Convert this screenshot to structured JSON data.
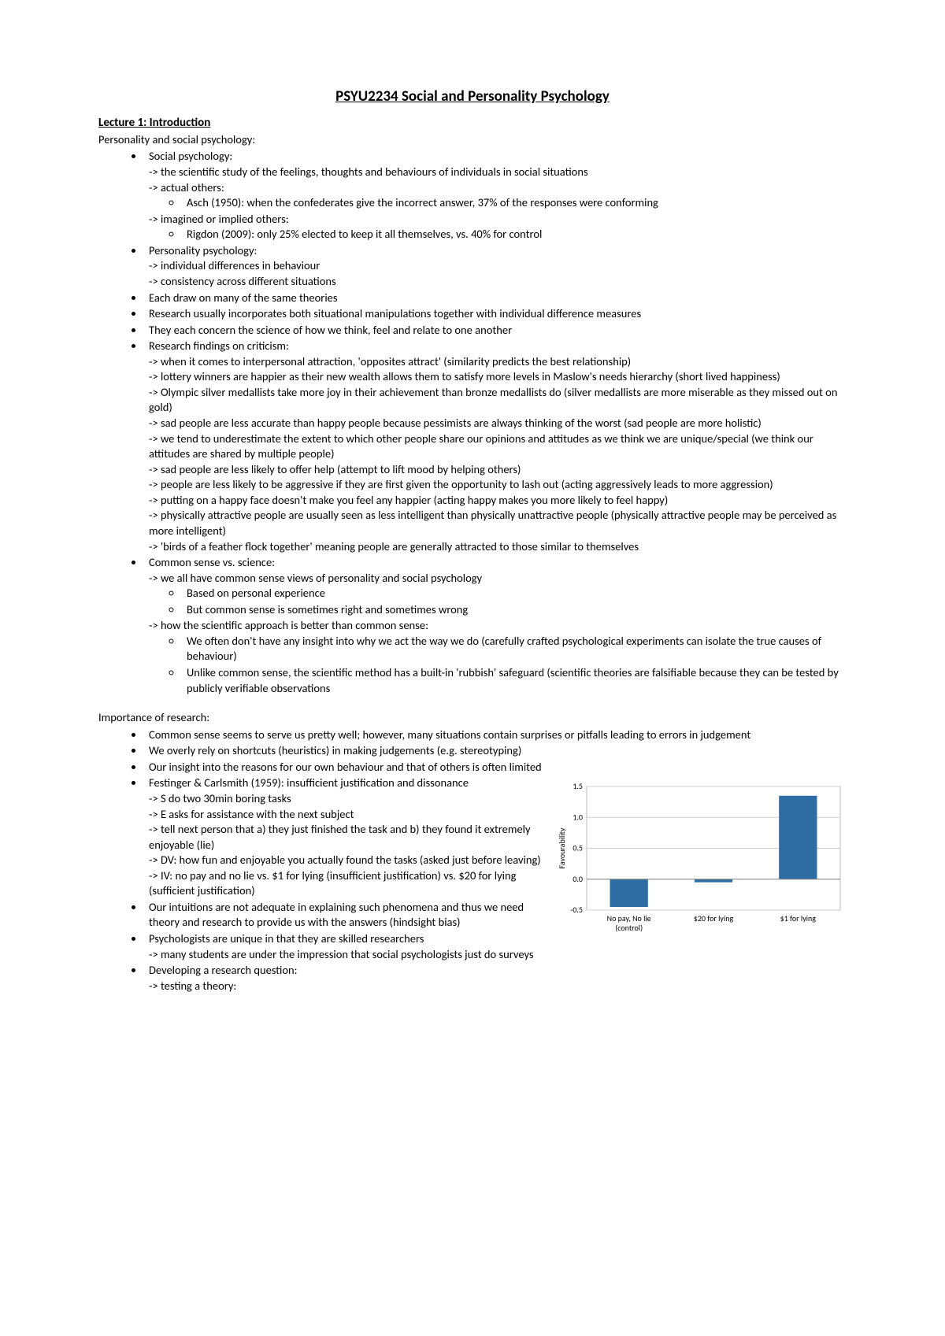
{
  "title": "PSYU2234 Social and Personality Psychology",
  "lecture_heading": "Lecture 1: Introduction",
  "section1_heading": "Personality and social psychology:",
  "b1": {
    "label": "Social psychology:",
    "s1": "-> the scientific study of the feelings, thoughts and behaviours of individuals in social situations",
    "s2": "-> actual others:",
    "s2a": "Asch (1950): when the confederates give the incorrect answer, 37% of the responses were conforming",
    "s3": "-> imagined or implied others:",
    "s3a": "Rigdon (2009): only 25% elected to keep it all themselves, vs. 40% for control"
  },
  "b2": {
    "label": "Personality psychology:",
    "s1": "-> individual differences in behaviour",
    "s2": "-> consistency across different situations"
  },
  "b3": "Each draw on many of the same theories",
  "b4": "Research usually incorporates both situational manipulations together with individual difference measures",
  "b5": "They each concern the science of how we think, feel and relate to one another",
  "b6": {
    "label": "Research findings on criticism:",
    "s1": "-> when it comes to interpersonal attraction, 'opposites attract' (similarity predicts the best relationship)",
    "s2": "-> lottery winners are happier as their new wealth allows them to satisfy more levels in Maslow's needs hierarchy (short lived happiness)",
    "s3": "-> Olympic silver medallists take more joy in their achievement than bronze medallists do (silver medallists are more miserable as they missed out on gold)",
    "s4": "-> sad people are less accurate than happy people because pessimists are always thinking of the worst (sad people are more holistic)",
    "s5": "-> we tend to underestimate the extent to which other people share our opinions and attitudes as we think we are unique/special (we think our attitudes are shared by multiple people)",
    "s6": "-> sad people are less likely to offer help (attempt to lift mood by helping others)",
    "s7": "-> people are less likely to be aggressive if they are first given the opportunity to lash out (acting aggressively leads to more aggression)",
    "s8": "-> putting on a happy face doesn't make you feel any happier (acting happy makes you more likely to feel happy)",
    "s9": "-> physically attractive people are usually seen as less intelligent than physically unattractive people (physically attractive people may be perceived as more intelligent)",
    "s10": "-> 'birds of a feather flock together' meaning people are generally attracted to those similar to themselves"
  },
  "b7": {
    "label": "Common sense vs. science:",
    "s1": "-> we all have common sense views of personality and social psychology",
    "s1a": "Based on personal experience",
    "s1b": "But common sense is sometimes right and sometimes wrong",
    "s2": "-> how the scientific approach is better than common sense:",
    "s2a": "We often don't have any insight into why we act the way we do (carefully crafted psychological experiments can isolate the true causes of behaviour)",
    "s2b": "Unlike common sense, the scientific method has a built-in 'rubbish' safeguard (scientific theories are falsifiable because they can be tested by publicly verifiable observations"
  },
  "section2_heading": "Importance of research:",
  "c1": "Common sense seems to serve us pretty well; however, many situations contain surprises or pitfalls leading to errors in judgement",
  "c2": "We overly rely on shortcuts (heuristics) in making judgements (e.g. stereotyping)",
  "c3": "Our insight into the reasons for our own behaviour and that of others is often limited",
  "c4": {
    "label": "Festinger & Carlsmith (1959): insufficient justification and dissonance",
    "s1": "-> S do two 30min boring tasks",
    "s2": "-> E asks for assistance with the next subject",
    "s3": "-> tell next person that a) they just finished the task and b) they found it extremely enjoyable (lie)",
    "s4": "-> DV: how fun and enjoyable you actually found the tasks (asked just before leaving)",
    "s5": "-> IV: no pay and no lie vs. $1 for lying (insufficient justification) vs. $20 for lying (sufficient justification)"
  },
  "c5": "Our intuitions are not adequate in explaining such phenomena and thus we need theory and research to provide us with the answers (hindsight bias)",
  "c6": {
    "label": "Psychologists are unique in that they are skilled researchers",
    "s1": "-> many students are under the impression that social psychologists just do surveys"
  },
  "c7": {
    "label": "Developing a research question:",
    "s1": "-> testing a theory:"
  },
  "chart": {
    "type": "bar",
    "ylabel": "Favourability",
    "categories": [
      "No pay, No lie (control)",
      "$20 for lying",
      "$1 for lying"
    ],
    "values": [
      -0.45,
      -0.05,
      1.35
    ],
    "bar_color": "#2e6ca4",
    "ylim": [
      -0.5,
      1.5
    ],
    "ytick_step": 0.5,
    "yticks": [
      "-0.5",
      "0.0",
      "0.5",
      "1.0",
      "1.5"
    ],
    "background_color": "#ffffff",
    "grid_color": "#d0d0d0",
    "bar_width": 0.45,
    "label_fontsize": 10
  }
}
